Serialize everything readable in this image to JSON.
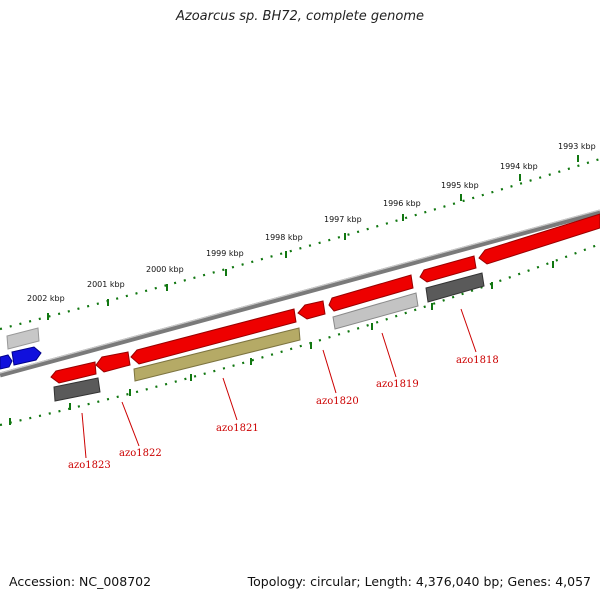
{
  "title": "Azoarcus sp. BH72, complete genome",
  "footer": {
    "accession": "Accession: NC_008702",
    "summary": "Topology: circular; Length: 4,376,040 bp; Genes: 4,057"
  },
  "colors": {
    "forward_gene": "#ee0000",
    "reverse_gene_dark": "#555555",
    "reverse_gene_light": "#bbbbbb",
    "pseudogene": "#b5aa66",
    "other_feature": "#0000dd",
    "backbone": "#777777",
    "tick": "#117711"
  },
  "scale_labels": [
    "2002 kbp",
    "2001 kbp",
    "2000 kbp",
    "1999 kbp",
    "1998 kbp",
    "1997 kbp",
    "1996 kbp",
    "1995 kbp",
    "1994 kbp",
    "1993 kbp"
  ],
  "gene_labels": [
    "azo1823",
    "azo1822",
    "azo1821",
    "azo1820",
    "azo1819",
    "azo1818"
  ]
}
